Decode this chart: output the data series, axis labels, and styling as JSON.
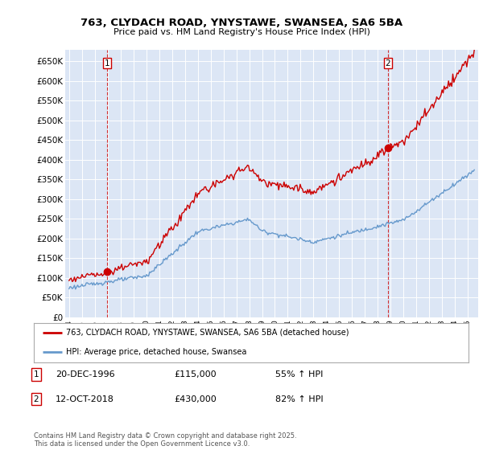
{
  "title_line1": "763, CLYDACH ROAD, YNYSTAWE, SWANSEA, SA6 5BA",
  "title_line2": "Price paid vs. HM Land Registry's House Price Index (HPI)",
  "background_color": "#ffffff",
  "plot_bg": "#dce6f5",
  "red_line_color": "#cc0000",
  "blue_line_color": "#6699cc",
  "yticks": [
    0,
    50000,
    100000,
    150000,
    200000,
    250000,
    300000,
    350000,
    400000,
    450000,
    500000,
    550000,
    600000,
    650000
  ],
  "ytick_labels": [
    "£0",
    "£50K",
    "£100K",
    "£150K",
    "£200K",
    "£250K",
    "£300K",
    "£350K",
    "£400K",
    "£450K",
    "£500K",
    "£550K",
    "£600K",
    "£650K"
  ],
  "legend_label1": "763, CLYDACH ROAD, YNYSTAWE, SWANSEA, SA6 5BA (detached house)",
  "legend_label2": "HPI: Average price, detached house, Swansea",
  "transaction1_date": "20-DEC-1996",
  "transaction1_price": "£115,000",
  "transaction1_pct": "55% ↑ HPI",
  "transaction2_date": "12-OCT-2018",
  "transaction2_price": "£430,000",
  "transaction2_pct": "82% ↑ HPI",
  "footnote": "Contains HM Land Registry data © Crown copyright and database right 2025.\nThis data is licensed under the Open Government Licence v3.0.",
  "sale1_year": 1996.97,
  "sale1_price": 115000,
  "sale2_year": 2018.79,
  "sale2_price": 430000,
  "xlim_left": 1993.7,
  "xlim_right": 2025.8
}
